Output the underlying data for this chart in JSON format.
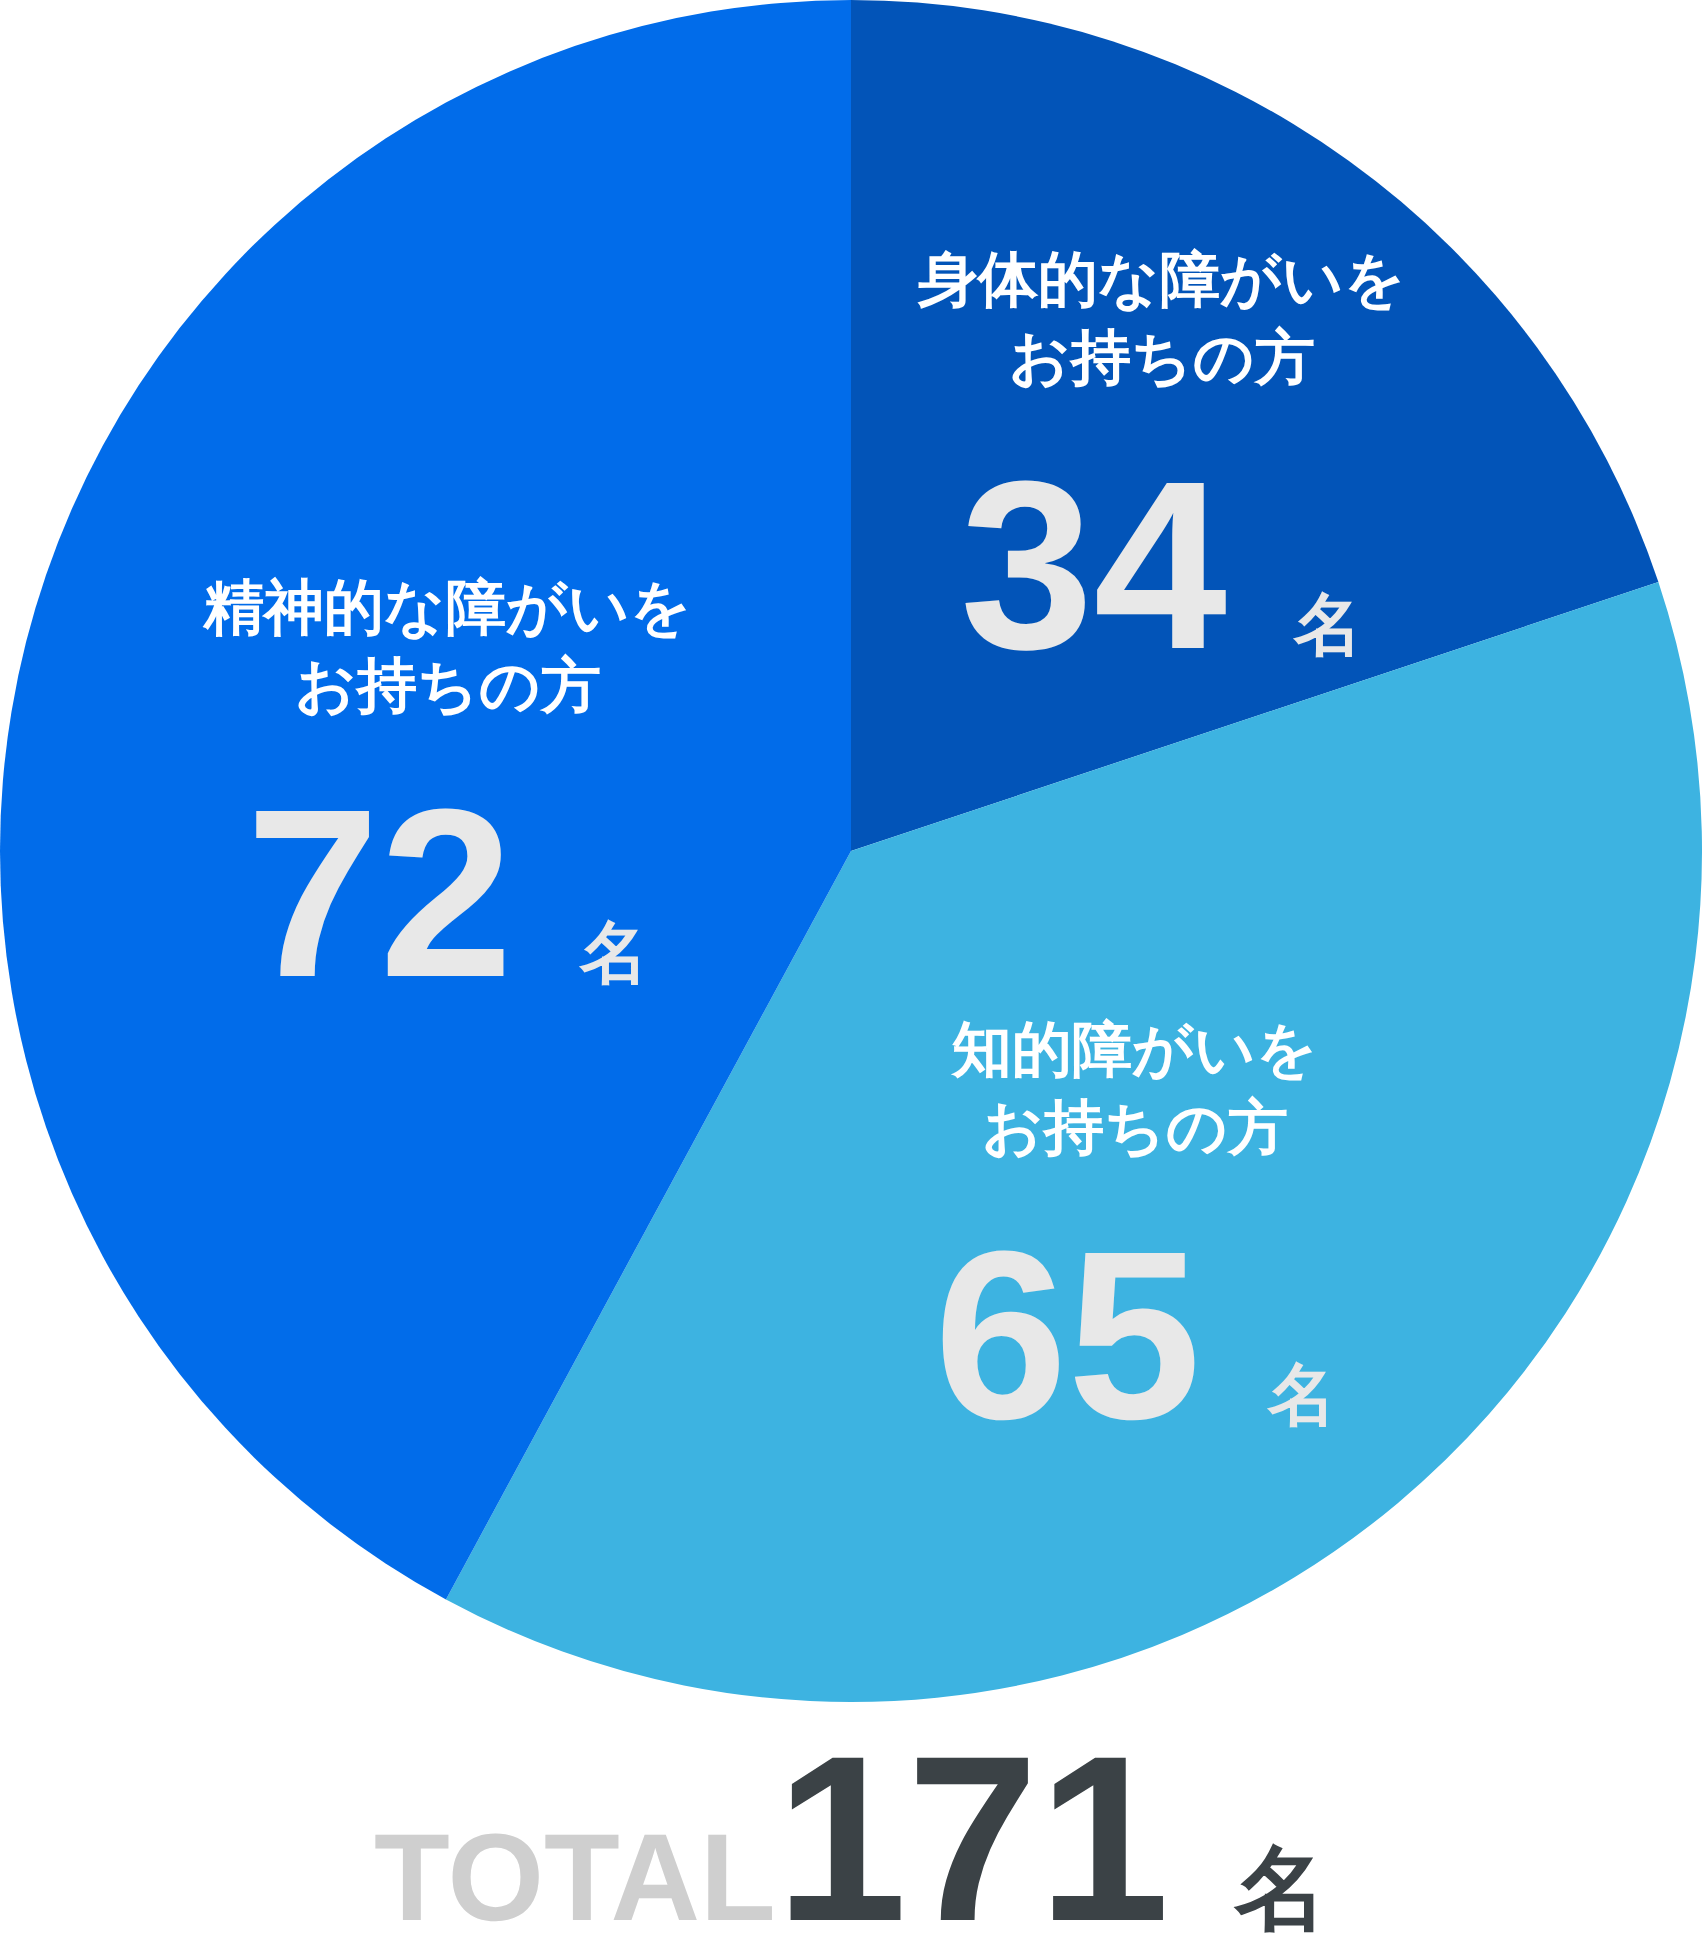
{
  "chart_data": {
    "type": "pie",
    "categories": [
      "身体的な障がいをお持ちの方",
      "知的障がいをお持ちの方",
      "精神的な障がいをお持ちの方"
    ],
    "values": [
      34,
      65,
      72
    ],
    "value_labels": [
      "34 名",
      "65 名",
      "72 名"
    ],
    "colors": [
      "#0254b8",
      "#3db3e1",
      "#016cea"
    ],
    "annotations": [
      "TOTAL171 名"
    ]
  }
}
